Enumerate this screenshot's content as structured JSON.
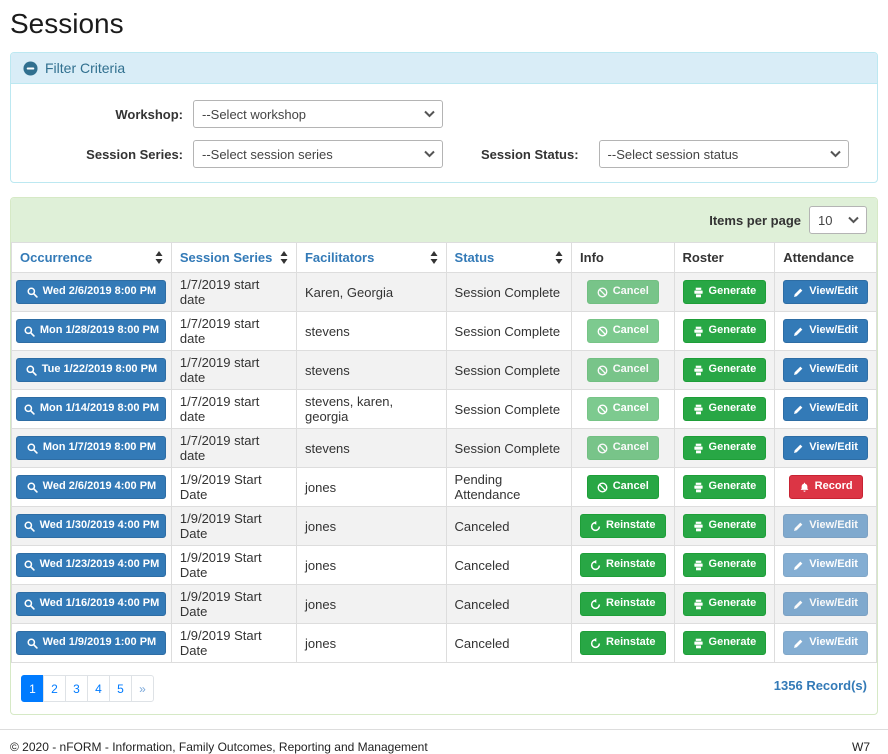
{
  "page": {
    "title": "Sessions"
  },
  "colors": {
    "primary": "#337ab7",
    "success": "#28a745",
    "danger": "#dc3545",
    "pagination_active": "#007bff",
    "panel_info_bg": "#d9edf7",
    "panel_info_border": "#bce8f1",
    "panel_info_text": "#31708f",
    "panel_success_bg": "#dff0d8",
    "panel_success_border": "#d6e9c6"
  },
  "filter": {
    "header": "Filter Criteria",
    "collapse_icon": "minus-circle-icon",
    "workshop": {
      "label": "Workshop:",
      "value": "--Select workshop"
    },
    "session_series": {
      "label": "Session Series:",
      "value": "--Select session series"
    },
    "session_status": {
      "label": "Session Status:",
      "value": "--Select session status"
    }
  },
  "table": {
    "items_per_page_label": "Items per page",
    "items_per_page_value": "10",
    "columns": [
      {
        "label": "Occurrence",
        "sortable": true
      },
      {
        "label": "Session Series",
        "sortable": true
      },
      {
        "label": "Facilitators",
        "sortable": true
      },
      {
        "label": "Status",
        "sortable": true
      },
      {
        "label": "Info",
        "sortable": false
      },
      {
        "label": "Roster",
        "sortable": false
      },
      {
        "label": "Attendance",
        "sortable": false
      }
    ],
    "rows": [
      {
        "occurrence": "Wed 2/6/2019 8:00 PM",
        "series": "1/7/2019 start date",
        "facilitators": "Karen, Georgia",
        "status": "Session Complete",
        "info": {
          "label": "Cancel",
          "icon": "ban-icon",
          "variant": "success",
          "disabled": true
        },
        "roster": {
          "label": "Generate",
          "icon": "printer-icon",
          "variant": "success",
          "disabled": false
        },
        "attendance": {
          "label": "View/Edit",
          "icon": "pencil-icon",
          "variant": "primary",
          "disabled": false
        }
      },
      {
        "occurrence": "Mon 1/28/2019 8:00 PM",
        "series": "1/7/2019 start date",
        "facilitators": "stevens",
        "status": "Session Complete",
        "info": {
          "label": "Cancel",
          "icon": "ban-icon",
          "variant": "success",
          "disabled": true
        },
        "roster": {
          "label": "Generate",
          "icon": "printer-icon",
          "variant": "success",
          "disabled": false
        },
        "attendance": {
          "label": "View/Edit",
          "icon": "pencil-icon",
          "variant": "primary",
          "disabled": false
        }
      },
      {
        "occurrence": "Tue 1/22/2019 8:00 PM",
        "series": "1/7/2019 start date",
        "facilitators": "stevens",
        "status": "Session Complete",
        "info": {
          "label": "Cancel",
          "icon": "ban-icon",
          "variant": "success",
          "disabled": true
        },
        "roster": {
          "label": "Generate",
          "icon": "printer-icon",
          "variant": "success",
          "disabled": false
        },
        "attendance": {
          "label": "View/Edit",
          "icon": "pencil-icon",
          "variant": "primary",
          "disabled": false
        }
      },
      {
        "occurrence": "Mon 1/14/2019 8:00 PM",
        "series": "1/7/2019 start date",
        "facilitators": "stevens, karen, georgia",
        "status": "Session Complete",
        "info": {
          "label": "Cancel",
          "icon": "ban-icon",
          "variant": "success",
          "disabled": true
        },
        "roster": {
          "label": "Generate",
          "icon": "printer-icon",
          "variant": "success",
          "disabled": false
        },
        "attendance": {
          "label": "View/Edit",
          "icon": "pencil-icon",
          "variant": "primary",
          "disabled": false
        }
      },
      {
        "occurrence": "Mon 1/7/2019 8:00 PM",
        "series": "1/7/2019 start date",
        "facilitators": "stevens",
        "status": "Session Complete",
        "info": {
          "label": "Cancel",
          "icon": "ban-icon",
          "variant": "success",
          "disabled": true
        },
        "roster": {
          "label": "Generate",
          "icon": "printer-icon",
          "variant": "success",
          "disabled": false
        },
        "attendance": {
          "label": "View/Edit",
          "icon": "pencil-icon",
          "variant": "primary",
          "disabled": false
        }
      },
      {
        "occurrence": "Wed 2/6/2019 4:00 PM",
        "series": "1/9/2019 Start Date",
        "facilitators": "jones",
        "status": "Pending Attendance",
        "info": {
          "label": "Cancel",
          "icon": "ban-icon",
          "variant": "success",
          "disabled": false
        },
        "roster": {
          "label": "Generate",
          "icon": "printer-icon",
          "variant": "success",
          "disabled": false
        },
        "attendance": {
          "label": "Record",
          "icon": "bell-icon",
          "variant": "danger",
          "disabled": false
        }
      },
      {
        "occurrence": "Wed 1/30/2019 4:00 PM",
        "series": "1/9/2019 Start Date",
        "facilitators": "jones",
        "status": "Canceled",
        "info": {
          "label": "Reinstate",
          "icon": "undo-icon",
          "variant": "success",
          "disabled": false
        },
        "roster": {
          "label": "Generate",
          "icon": "printer-icon",
          "variant": "success",
          "disabled": false
        },
        "attendance": {
          "label": "View/Edit",
          "icon": "pencil-icon",
          "variant": "primary",
          "disabled": true
        }
      },
      {
        "occurrence": "Wed 1/23/2019 4:00 PM",
        "series": "1/9/2019 Start Date",
        "facilitators": "jones",
        "status": "Canceled",
        "info": {
          "label": "Reinstate",
          "icon": "undo-icon",
          "variant": "success",
          "disabled": false
        },
        "roster": {
          "label": "Generate",
          "icon": "printer-icon",
          "variant": "success",
          "disabled": false
        },
        "attendance": {
          "label": "View/Edit",
          "icon": "pencil-icon",
          "variant": "primary",
          "disabled": true
        }
      },
      {
        "occurrence": "Wed 1/16/2019 4:00 PM",
        "series": "1/9/2019 Start Date",
        "facilitators": "jones",
        "status": "Canceled",
        "info": {
          "label": "Reinstate",
          "icon": "undo-icon",
          "variant": "success",
          "disabled": false
        },
        "roster": {
          "label": "Generate",
          "icon": "printer-icon",
          "variant": "success",
          "disabled": false
        },
        "attendance": {
          "label": "View/Edit",
          "icon": "pencil-icon",
          "variant": "primary",
          "disabled": true
        }
      },
      {
        "occurrence": "Wed 1/9/2019 1:00 PM",
        "series": "1/9/2019 Start Date",
        "facilitators": "jones",
        "status": "Canceled",
        "info": {
          "label": "Reinstate",
          "icon": "undo-icon",
          "variant": "success",
          "disabled": false
        },
        "roster": {
          "label": "Generate",
          "icon": "printer-icon",
          "variant": "success",
          "disabled": false
        },
        "attendance": {
          "label": "View/Edit",
          "icon": "pencil-icon",
          "variant": "primary",
          "disabled": true
        }
      }
    ],
    "pagination": {
      "pages": [
        "1",
        "2",
        "3",
        "4",
        "5"
      ],
      "next": "»",
      "active": "1"
    },
    "record_count": "1356 Record(s)"
  },
  "footer": {
    "copyright": "© 2020 - nFORM - Information, Family Outcomes, Reporting and Management",
    "right": "W7"
  }
}
